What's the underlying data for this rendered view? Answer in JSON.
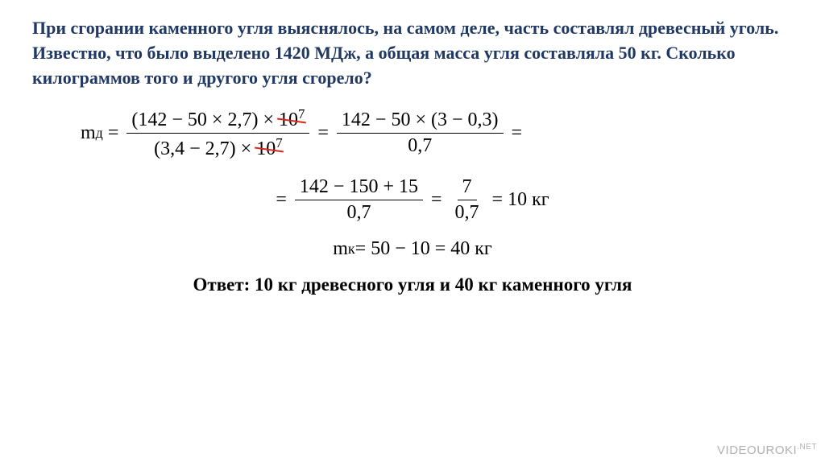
{
  "problem": "При сгорании каменного угля выяснялось, на самом деле, часть составлял древесный уголь. Известно, что было выделено 1420 МДж, а общая масса угля составляла 50 кг. Сколько килограммов того и другого угля сгорело?",
  "eq1": {
    "lhs": "m",
    "sub": "д",
    "frac1_num_a": "(142 − 50 × 2,7) × ",
    "frac1_num_strike": "10",
    "frac1_num_sup": "7",
    "frac1_den_a": "(3,4 − 2,7) × ",
    "frac1_den_strike": "10",
    "frac1_den_sup": "7",
    "frac2_num": "142 − 50 × (3 − 0,3)",
    "frac2_den": "0,7"
  },
  "eq2": {
    "frac1_num": "142 − 150 + 15",
    "frac1_den": "0,7",
    "frac2_num": "7",
    "frac2_den": "0,7",
    "result": "10 кг"
  },
  "eq3": {
    "lhs": "m",
    "sub": "к",
    "expr": " = 50 − 10 = 40 кг"
  },
  "answer": "Ответ: 10 кг древесного угля и 40 кг каменного угля",
  "watermark_main": "VIDEOUROKI",
  "watermark_sup": ".NET"
}
